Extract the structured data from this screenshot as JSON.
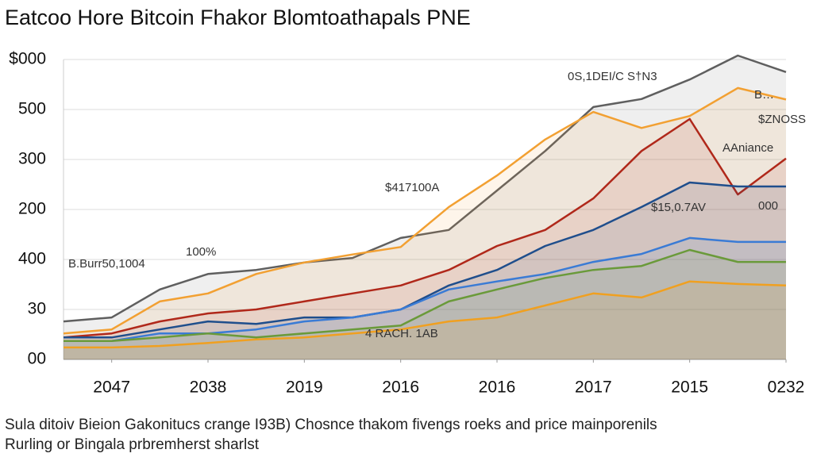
{
  "chart_data": {
    "type": "line",
    "title": "Eatcoo Hore Bitcoin Fhakor Blomtoathapals PNE",
    "subtitle": [
      "Sula ditoiv Bieion Gakonitucs crange I93B) Chosnce thakom fivengs roeks and price mainporenils",
      "Rurling or Bingala prbremherst sharlst"
    ],
    "annotations": [
      "0S,1DEI/C S†N3",
      "B…",
      "$ZNOSS",
      "AAniance",
      "$417100A",
      "$15,0.7AV",
      "000",
      "100%",
      "B.Burr50,1004",
      "4 RACH. 1AB"
    ],
    "xlim": [
      0,
      7.5
    ],
    "xticks": [
      {
        "value": 0.5,
        "label": "2047"
      },
      {
        "value": 1.5,
        "label": "2038"
      },
      {
        "value": 2.5,
        "label": "2019"
      },
      {
        "value": 3.5,
        "label": "2016"
      },
      {
        "value": 4.5,
        "label": "2016"
      },
      {
        "value": 5.5,
        "label": "2017"
      },
      {
        "value": 6.5,
        "label": "2015"
      },
      {
        "value": 7.5,
        "label": "0232"
      }
    ],
    "ylim": [
      0,
      6
    ],
    "yticks": [
      {
        "value": 0,
        "label": "00"
      },
      {
        "value": 1,
        "label": "30"
      },
      {
        "value": 2,
        "label": "400"
      },
      {
        "value": 3,
        "label": "200"
      },
      {
        "value": 4,
        "label": "300"
      },
      {
        "value": 5,
        "label": "500"
      },
      {
        "value": 6,
        "label": "$000"
      }
    ],
    "grid": true,
    "x": [
      0,
      0.5,
      1,
      1.5,
      2,
      2.5,
      3,
      3.5,
      4,
      4.5,
      5,
      5.5,
      6,
      6.5,
      7,
      7.5
    ],
    "series": [
      {
        "color": "#5f5f5f",
        "values": [
          0.76,
          0.84,
          1.4,
          1.71,
          1.79,
          1.94,
          2.03,
          2.43,
          2.59,
          3.38,
          4.17,
          5.05,
          5.21,
          5.6,
          6.08,
          5.75
        ]
      },
      {
        "color": "#f2a032",
        "values": [
          0.52,
          0.6,
          1.16,
          1.32,
          1.71,
          1.94,
          2.1,
          2.25,
          3.05,
          3.68,
          4.4,
          4.95,
          4.63,
          4.87,
          5.43,
          5.2
        ]
      },
      {
        "color": "#b0281a",
        "values": [
          0.44,
          0.52,
          0.76,
          0.92,
          1.0,
          1.16,
          1.32,
          1.48,
          1.79,
          2.27,
          2.59,
          3.22,
          4.17,
          4.81,
          3.3,
          4.02
        ]
      },
      {
        "color": "#1f4e8c",
        "values": [
          0.44,
          0.44,
          0.6,
          0.76,
          0.71,
          0.84,
          0.84,
          1.0,
          1.48,
          1.79,
          2.27,
          2.59,
          3.05,
          3.54,
          3.46,
          3.46
        ]
      },
      {
        "color": "#3a7bd5",
        "values": [
          0.37,
          0.37,
          0.52,
          0.52,
          0.6,
          0.76,
          0.84,
          1.0,
          1.4,
          1.56,
          1.71,
          1.95,
          2.11,
          2.43,
          2.35,
          2.35
        ]
      },
      {
        "color": "#6a9a3a",
        "values": [
          0.37,
          0.37,
          0.44,
          0.52,
          0.44,
          0.52,
          0.6,
          0.68,
          1.16,
          1.4,
          1.63,
          1.79,
          1.87,
          2.19,
          1.95,
          1.95
        ]
      },
      {
        "color": "#f0a020",
        "values": [
          0.24,
          0.24,
          0.27,
          0.33,
          0.4,
          0.44,
          0.52,
          0.6,
          0.76,
          0.84,
          1.08,
          1.32,
          1.24,
          1.56,
          1.51,
          1.48
        ]
      }
    ]
  }
}
